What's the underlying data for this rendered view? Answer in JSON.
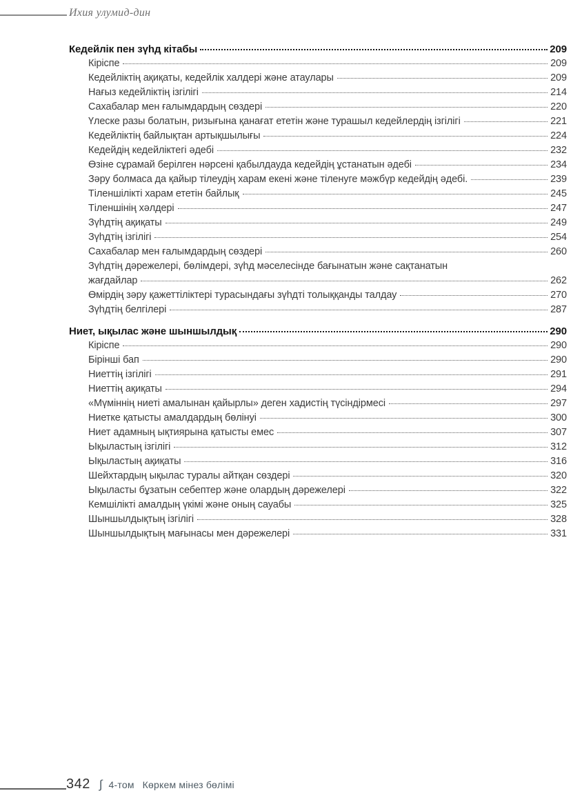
{
  "page_header": {
    "running_title": "Ихия улумид-дин"
  },
  "toc": {
    "sections": [
      {
        "title": "Кедейлік пен зүһд кітабы",
        "page": "209",
        "entries": [
          {
            "text": "Кіріспе",
            "page": "209"
          },
          {
            "text": "Кедейліктің ақиқаты, кедейлік халдері және атаулары",
            "page": "209"
          },
          {
            "text": "Нағыз кедейліктің ізгілігі",
            "page": "214"
          },
          {
            "text": "Сахабалар мен ғалымдардың сөздері",
            "page": "220"
          },
          {
            "text": "Үлеске разы болатын, ризығына қанағат ететін және турашыл кедейлердің ізгілігі",
            "page": "221"
          },
          {
            "text": "Кедейліктің байлықтан артықшылығы",
            "page": "224"
          },
          {
            "text": "Кедейдің кедейліктегі әдебі",
            "page": "232"
          },
          {
            "text": "Өзіне сұрамай берілген нәрсені қабылдауда кедейдің ұстанатын әдебі",
            "page": "234"
          },
          {
            "text": "Зәру болмаса да қайыр тілеудің харам екені және тіленуге мәжбүр кедейдің әдебі.",
            "page": "239"
          },
          {
            "text": "Тіленшілікті харам ететін байлық",
            "page": "245"
          },
          {
            "text": "Тіленшінің хәлдері",
            "page": "247"
          },
          {
            "text": "Зүһдтің ақиқаты",
            "page": "249"
          },
          {
            "text": "Зүһдтің ізгілігі",
            "page": "254"
          },
          {
            "text": "Сахабалар мен ғалымдардың сөздері",
            "page": "260"
          },
          {
            "text": "Зүһдтің дәрежелері, бөлімдері, зүһд мәселесінде бағынатын және сақтанатын",
            "text2": "жағдайлар",
            "page": "262"
          },
          {
            "text": "Өмірдің зәру қажеттіліктері турасындағы зүһдті толыққанды талдау",
            "page": "270"
          },
          {
            "text": "Зүһдтің белгілері",
            "page": "287"
          }
        ]
      },
      {
        "title": "Ниет, ықылас және шыншылдық",
        "page": "290",
        "entries": [
          {
            "text": "Кіріспе",
            "page": "290"
          },
          {
            "text": "Бірінші бап",
            "page": "290"
          },
          {
            "text": "Ниеттің ізгілігі",
            "page": "291"
          },
          {
            "text": "Ниеттің ақиқаты",
            "page": "294"
          },
          {
            "text": "«Мүміннің ниеті амалынан қайырлы» деген хадистің түсіндірмесі",
            "page": "297"
          },
          {
            "text": "Ниетке қатысты амалдардың бөлінуі",
            "page": "300"
          },
          {
            "text": "Ниет адамның ықтиярына қатысты емес",
            "page": "307"
          },
          {
            "text": "Ықыластың ізгілігі",
            "page": "312"
          },
          {
            "text": "Ықыластың ақиқаты",
            "page": "316"
          },
          {
            "text": "Шейхтардың ықылас туралы айтқан сөздері",
            "page": "320"
          },
          {
            "text": "Ықыласты бұзатын себептер және олардың дәрежелері",
            "page": "322"
          },
          {
            "text": "Кемшілікті амалдың үкімі және оның сауабы",
            "page": "325"
          },
          {
            "text": "Шыншылдықтың ізгілігі",
            "page": "328"
          },
          {
            "text": "Шыншылдықтың мағынасы мен дәрежелері",
            "page": "331"
          }
        ]
      }
    ]
  },
  "page_footer": {
    "page_number": "342",
    "separator": "∫",
    "volume": "4-том",
    "section_title": "Көркем мінез бөлімі"
  },
  "colors": {
    "body_text": "#3b3b3b",
    "bold_text": "#161616",
    "header_gray": "#6e6e6e",
    "footer_accent": "#4d5a63",
    "background": "#ffffff"
  }
}
